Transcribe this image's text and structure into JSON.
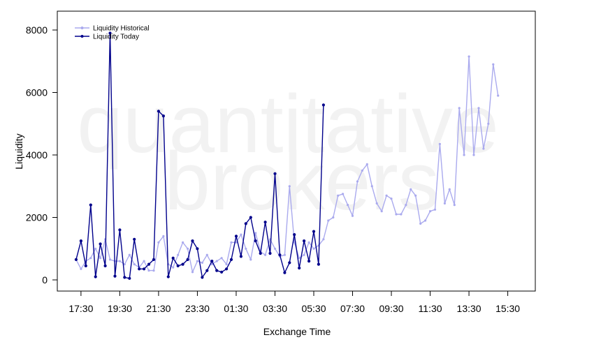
{
  "watermark": {
    "line1": "quantitative",
    "line2": "brokers"
  },
  "colors": {
    "historical": "#aaaaee",
    "today": "#00008b",
    "axis": "#000000"
  },
  "chart_data": {
    "type": "line",
    "xlabel": "Exchange Time",
    "ylabel": "Liquidity",
    "ylim": [
      -300,
      8600
    ],
    "yticks": [
      0,
      2000,
      4000,
      6000,
      8000
    ],
    "xticks": [
      "17:30",
      "19:30",
      "21:30",
      "23:30",
      "01:30",
      "03:30",
      "05:30",
      "07:30",
      "09:30",
      "11:30",
      "13:30",
      "15:30"
    ],
    "x_interval_minutes": 15,
    "x_start": "17:00",
    "grid": false,
    "legend_position": "top-left",
    "series": [
      {
        "name": "Liquidity Historical",
        "color": "#aaaaee",
        "start": "17:15",
        "values": [
          650,
          350,
          600,
          700,
          1000,
          700,
          1300,
          650,
          600,
          600,
          500,
          800,
          500,
          400,
          600,
          300,
          300,
          1200,
          1400,
          500,
          400,
          800,
          1200,
          1000,
          250,
          600,
          550,
          800,
          500,
          600,
          700,
          500,
          1200,
          1200,
          1450,
          1000,
          650,
          1500,
          900,
          800,
          1300,
          1000,
          750,
          800,
          3000,
          1200,
          700,
          800,
          1200,
          1000,
          1100,
          1300,
          1900,
          2000,
          2700,
          2750,
          2400,
          2050,
          3150,
          3500,
          3700,
          3000,
          2450,
          2200,
          2700,
          2600,
          2100,
          2100,
          2400,
          2900,
          2700,
          1800,
          1900,
          2200,
          2250,
          4350,
          2450,
          2900,
          2400,
          5500,
          4000,
          7150,
          4000,
          5500,
          4200,
          5000,
          6900,
          5900
        ]
      },
      {
        "name": "Liquidity Today",
        "color": "#00008b",
        "start": "17:15",
        "values": [
          650,
          1250,
          450,
          2400,
          100,
          1150,
          450,
          7900,
          120,
          1600,
          80,
          50,
          1300,
          350,
          350,
          500,
          650,
          5400,
          5250,
          100,
          700,
          450,
          500,
          650,
          1250,
          1000,
          80,
          300,
          600,
          300,
          250,
          350,
          650,
          1400,
          750,
          1800,
          2000,
          1250,
          850,
          1850,
          850,
          3400,
          800,
          230,
          550,
          1450,
          380,
          1250,
          600,
          1550,
          500,
          5600
        ]
      }
    ]
  }
}
